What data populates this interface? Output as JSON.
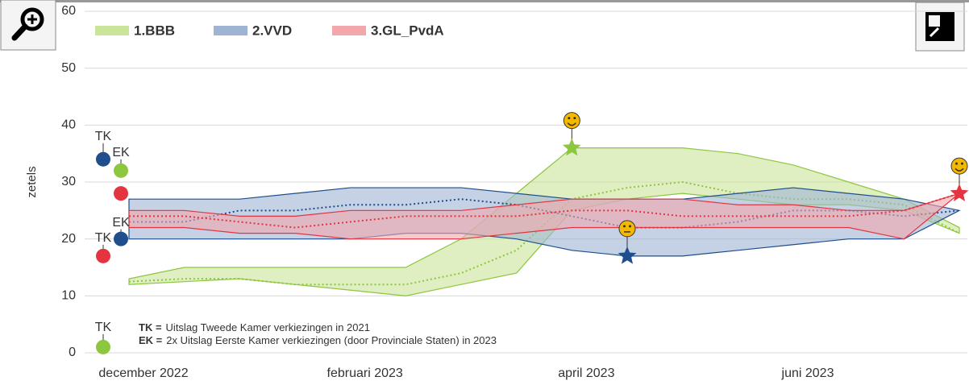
{
  "chart_data": {
    "type": "band",
    "y_label": "zetels",
    "categories": [
      "december 2022",
      null,
      null,
      null,
      "februari 2023",
      null,
      null,
      null,
      "april 2023",
      null,
      null,
      null,
      "juni 2023",
      null,
      null,
      null
    ],
    "ylim": [
      0,
      60
    ],
    "yticks": [
      0,
      10,
      20,
      30,
      40,
      50,
      60
    ],
    "grid": true,
    "series": [
      {
        "name": "1.BBB",
        "color": "#8dc63f",
        "fill": "#c9e59a",
        "high": [
          13,
          15,
          15,
          15,
          15,
          15,
          20,
          28,
          36,
          36,
          36,
          35,
          33,
          30,
          27,
          22
        ],
        "low": [
          12,
          12.5,
          13,
          12,
          11,
          10,
          12,
          14,
          25,
          27,
          28,
          27,
          26,
          26,
          25,
          21
        ],
        "values": [
          12.5,
          13,
          13,
          12,
          12,
          12,
          14,
          18,
          27,
          29,
          30,
          28,
          27,
          27,
          26,
          21
        ]
      },
      {
        "name": "2.VVD",
        "color": "#1f4e8c",
        "fill": "#9fb4d3",
        "high": [
          27,
          27,
          27,
          28,
          29,
          29,
          29,
          28,
          27,
          27,
          27,
          28,
          29,
          28,
          27,
          25
        ],
        "low": [
          20,
          20,
          20,
          20,
          20,
          21,
          21,
          20,
          18,
          17,
          17,
          18,
          19,
          20,
          20,
          25
        ],
        "values": [
          23,
          23,
          25,
          25,
          26,
          26,
          27,
          26,
          24,
          22,
          22,
          23,
          25,
          25,
          24,
          25
        ]
      },
      {
        "name": "3.GL_PvdA",
        "color": "#e3343f",
        "fill": "#f2a7ad",
        "high": [
          25,
          25,
          24,
          24,
          25,
          25,
          25,
          26,
          27,
          27,
          27,
          26,
          26,
          25,
          25,
          28
        ],
        "low": [
          22,
          22,
          21,
          21,
          20,
          20,
          20,
          21,
          22,
          22,
          22,
          22,
          22,
          22,
          20,
          28
        ],
        "values": [
          24,
          24,
          23,
          22,
          23,
          24,
          24,
          24,
          25,
          25,
          24,
          24,
          24,
          24,
          25,
          28
        ]
      }
    ],
    "markers": [
      {
        "label": "TK",
        "value": 34,
        "color": "#1f4e8c"
      },
      {
        "label": "EK",
        "value": 32,
        "color": "#8dc63f"
      },
      {
        "value": 28,
        "color": "#e3343f"
      },
      {
        "label": "EK",
        "value": 20,
        "color": "#1f4e8c"
      },
      {
        "label": "TK",
        "value": 17,
        "color": "#e3343f"
      },
      {
        "label": "TK",
        "value": 1,
        "color": "#8dc63f"
      }
    ],
    "stars": [
      {
        "value": 36,
        "color": "#8dc63f"
      },
      {
        "value": 17,
        "color": "#1f4e8c"
      },
      {
        "value": 28,
        "color": "#e3343f"
      }
    ],
    "notes": [
      {
        "key": "TK =",
        "text": "Uitslag Tweede Kamer verkiezingen in 2021"
      },
      {
        "key": "EK =",
        "text": "2x Uitslag Eerste Kamer verkiezingen (door Provinciale Staten) in 2023"
      }
    ]
  }
}
